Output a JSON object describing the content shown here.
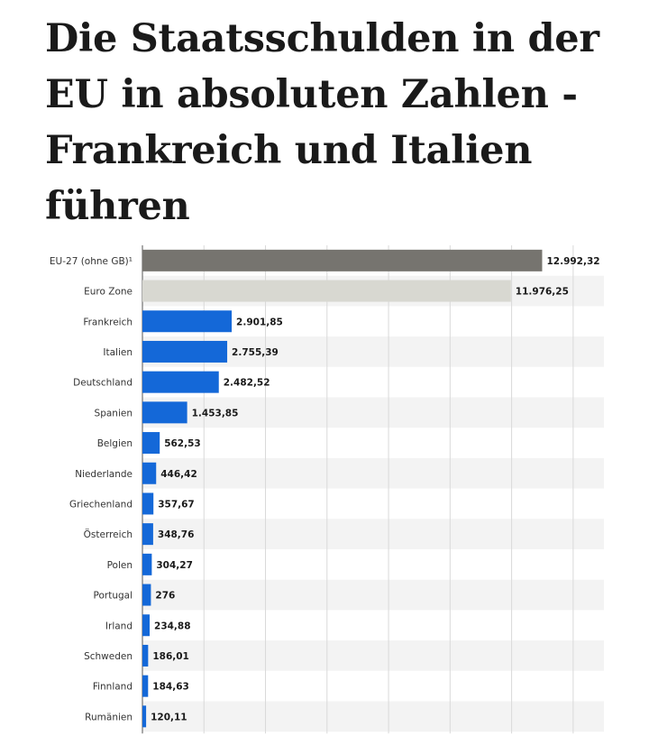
{
  "headline": "Die Staatsschulden in der EU in absoluten Zahlen - Frankreich und Italien führen",
  "colors": {
    "aggregate_eu": "#76746f",
    "aggregate_euro": "#d8d8d1",
    "country": "#1468d8",
    "grid": "#d9d9d9",
    "band": "#f3f3f3"
  },
  "chart_data": {
    "type": "bar",
    "orientation": "horizontal",
    "title": "",
    "xlabel": "",
    "ylabel": "",
    "xlim": [
      0,
      15000
    ],
    "grid": true,
    "categories": [
      "EU-27 (ohne GB)¹",
      "Euro Zone",
      "Frankreich",
      "Italien",
      "Deutschland",
      "Spanien",
      "Belgien",
      "Niederlande",
      "Griechenland",
      "Österreich",
      "Polen",
      "Portugal",
      "Irland",
      "Schweden",
      "Finnland",
      "Rumänien"
    ],
    "values": [
      12992.32,
      11976.25,
      2901.85,
      2755.39,
      2482.52,
      1453.85,
      562.53,
      446.42,
      357.67,
      348.76,
      304.27,
      276,
      234.88,
      186.01,
      184.63,
      120.11
    ],
    "value_labels": [
      "12.992,32",
      "11.976,25",
      "2.901,85",
      "2.755,39",
      "2.482,52",
      "1.453,85",
      "562,53",
      "446,42",
      "357,67",
      "348,76",
      "304,27",
      "276",
      "234,88",
      "186,01",
      "184,63",
      "120,11"
    ],
    "bar_groups": [
      "aggregate_eu",
      "aggregate_euro",
      "country",
      "country",
      "country",
      "country",
      "country",
      "country",
      "country",
      "country",
      "country",
      "country",
      "country",
      "country",
      "country",
      "country"
    ]
  }
}
